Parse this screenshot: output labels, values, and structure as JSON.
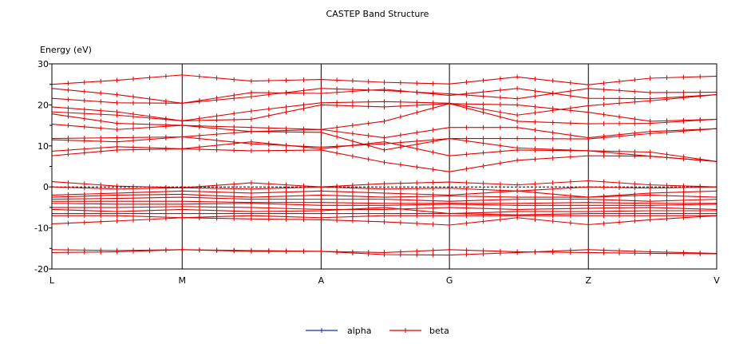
{
  "chart_data": {
    "type": "line",
    "title": "CASTEP Band Structure",
    "ylabel": "Energy (eV)",
    "xlabel": "",
    "ylim": [
      -20,
      30
    ],
    "yticks": [
      30,
      20,
      10,
      0,
      -10,
      -20
    ],
    "yminor": [
      25,
      15,
      5,
      -5,
      -15
    ],
    "grid": "vertical lines at high-symmetry points",
    "fermi_level": 0,
    "legend_placement": "bottom",
    "k_labels": [
      "L",
      "M",
      "A",
      "G",
      "Z",
      "V"
    ],
    "k_ticks": [
      0,
      0.196,
      0.405,
      0.598,
      0.807,
      1.0
    ],
    "k": [
      0,
      0.098,
      0.196,
      0.3,
      0.405,
      0.5,
      0.598,
      0.7,
      0.807,
      0.9,
      1.0
    ],
    "series": [
      {
        "name": "alpha",
        "color": "#1f2fa0",
        "bands": []
      },
      {
        "name": "beta",
        "color": "#e00000",
        "bands": [
          [
            25.0,
            26.0,
            27.3,
            25.8,
            26.2,
            25.5,
            25.1,
            26.8,
            24.9,
            26.5,
            27.0
          ],
          [
            24.0,
            22.5,
            20.4,
            22.0,
            24.0,
            23.5,
            22.7,
            21.5,
            24.0,
            23.0,
            23.1
          ],
          [
            21.6,
            20.5,
            20.4,
            23.0,
            22.8,
            23.8,
            22.3,
            24.0,
            21.6,
            21.5,
            22.5
          ],
          [
            19.5,
            18.3,
            16.1,
            18.5,
            20.5,
            20.8,
            20.4,
            17.5,
            19.8,
            21.0,
            22.5
          ],
          [
            18.3,
            17.5,
            16.1,
            16.5,
            20.0,
            19.5,
            20.3,
            20.0,
            18.2,
            16.0,
            16.5
          ],
          [
            17.8,
            15.5,
            15.0,
            14.5,
            14.0,
            16.0,
            20.3,
            16.0,
            15.4,
            15.5,
            16.5
          ],
          [
            15.3,
            14.0,
            15.0,
            13.5,
            14.0,
            12.0,
            14.5,
            14.5,
            12.0,
            13.5,
            14.2
          ],
          [
            11.8,
            12.0,
            12.2,
            13.5,
            13.3,
            9.0,
            11.8,
            11.8,
            11.7,
            13.0,
            14.2
          ],
          [
            11.5,
            11.0,
            12.2,
            10.5,
            9.7,
            10.5,
            11.8,
            9.5,
            8.8,
            7.5,
            6.2
          ],
          [
            8.7,
            9.8,
            9.3,
            11.0,
            9.3,
            11.0,
            7.6,
            9.0,
            8.8,
            8.5,
            6.2
          ],
          [
            7.6,
            9.0,
            9.3,
            8.8,
            9.0,
            6.0,
            3.7,
            6.5,
            7.6,
            7.5,
            6.2
          ],
          [
            1.3,
            0.2,
            -0.2,
            1.0,
            0.0,
            0.8,
            1.2,
            0.5,
            1.5,
            0.5,
            0.0
          ],
          [
            0.0,
            -0.5,
            -0.2,
            -0.5,
            0.0,
            -0.5,
            -0.3,
            -1.0,
            0.0,
            -0.3,
            0.0
          ],
          [
            -2.0,
            -1.5,
            -1.0,
            -1.5,
            -1.0,
            -1.5,
            -2.0,
            -1.0,
            -2.5,
            -1.5,
            -1.0
          ],
          [
            -2.5,
            -2.0,
            -1.8,
            -2.5,
            -2.0,
            -2.5,
            -2.2,
            -2.5,
            -2.5,
            -2.0,
            -2.5
          ],
          [
            -3.0,
            -2.8,
            -2.5,
            -3.0,
            -3.0,
            -3.0,
            -3.5,
            -3.0,
            -3.0,
            -3.5,
            -3.0
          ],
          [
            -3.5,
            -3.5,
            -3.5,
            -3.8,
            -3.8,
            -4.0,
            -4.0,
            -4.0,
            -3.8,
            -4.0,
            -4.0
          ],
          [
            -4.0,
            -4.2,
            -4.2,
            -4.0,
            -4.5,
            -4.5,
            -4.2,
            -4.5,
            -4.5,
            -4.5,
            -4.2
          ],
          [
            -5.0,
            -5.0,
            -4.8,
            -5.0,
            -5.5,
            -5.5,
            -5.0,
            -5.5,
            -5.2,
            -5.0,
            -5.5
          ],
          [
            -5.5,
            -6.0,
            -5.5,
            -6.0,
            -5.8,
            -5.0,
            -6.5,
            -6.0,
            -6.0,
            -5.8,
            -5.8
          ],
          [
            -6.5,
            -6.5,
            -6.5,
            -6.5,
            -6.5,
            -6.5,
            -6.5,
            -6.8,
            -6.5,
            -6.5,
            -6.5
          ],
          [
            -7.0,
            -7.0,
            -7.5,
            -7.0,
            -7.5,
            -7.0,
            -7.0,
            -7.0,
            -7.0,
            -7.0,
            -7.0
          ],
          [
            -9.0,
            -8.3,
            -7.5,
            -7.8,
            -8.0,
            -8.5,
            -9.3,
            -7.5,
            -9.2,
            -8.0,
            -7.0
          ],
          [
            -15.3,
            -15.5,
            -15.3,
            -15.7,
            -15.7,
            -16.5,
            -16.6,
            -16.0,
            -15.3,
            -15.8,
            -16.2
          ],
          [
            -16.0,
            -15.8,
            -15.3,
            -15.5,
            -15.7,
            -16.0,
            -15.3,
            -15.8,
            -16.0,
            -16.2,
            -16.3
          ]
        ]
      }
    ]
  }
}
